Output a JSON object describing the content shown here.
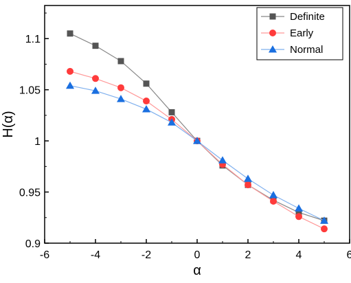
{
  "chart_data": {
    "type": "line",
    "title": "",
    "xlabel": "α",
    "ylabel": "H(α)",
    "xlim": [
      -6,
      6
    ],
    "ylim": [
      0.9,
      1.125
    ],
    "xticks": [
      -6,
      -4,
      -2,
      0,
      2,
      4,
      6
    ],
    "xtick_labels": [
      "-6",
      "-4",
      "-2",
      "0",
      "2",
      "4",
      "6"
    ],
    "yticks": [
      0.9,
      0.95,
      1.0,
      1.05,
      1.1
    ],
    "ytick_labels": [
      "0.9",
      "0.95",
      "1",
      "1.05",
      "1.1"
    ],
    "grid": false,
    "legend_position": "top-right",
    "x": [
      -5,
      -4,
      -3,
      -2,
      -1,
      0,
      1,
      2,
      3,
      4,
      5
    ],
    "series": [
      {
        "name": "Definite",
        "marker": "square",
        "marker_color": "#555555",
        "line_color": "#888888",
        "values": [
          1.105,
          1.093,
          1.078,
          1.056,
          1.028,
          1.0,
          0.976,
          0.957,
          0.942,
          0.93,
          0.922
        ]
      },
      {
        "name": "Early",
        "marker": "circle",
        "marker_color": "#ff3b3b",
        "line_color": "#ff9999",
        "values": [
          1.068,
          1.061,
          1.052,
          1.039,
          1.021,
          1.0,
          0.977,
          0.957,
          0.941,
          0.926,
          0.914
        ]
      },
      {
        "name": "Normal",
        "marker": "triangle",
        "marker_color": "#1a6fe0",
        "line_color": "#7fb0ee",
        "values": [
          1.054,
          1.049,
          1.041,
          1.031,
          1.018,
          1.0,
          0.981,
          0.963,
          0.947,
          0.934,
          0.922
        ]
      }
    ]
  }
}
